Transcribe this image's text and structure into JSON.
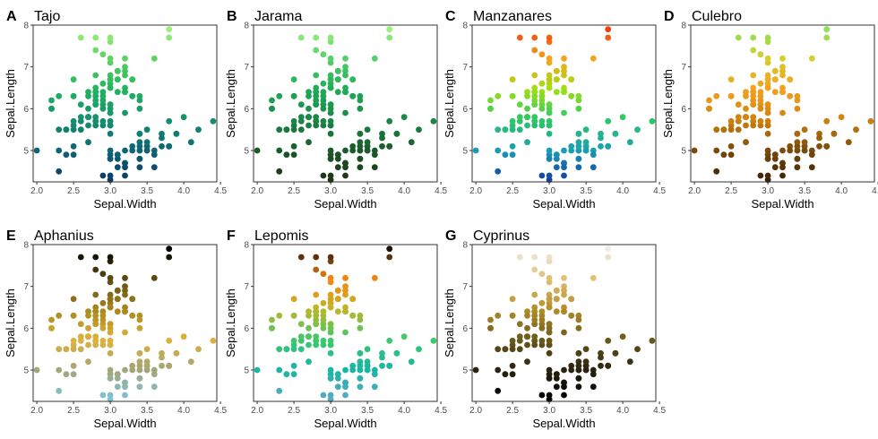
{
  "chart_data": {
    "type": "scatter",
    "xlabel": "Sepal.Width",
    "ylabel": "Sepal.Length",
    "xlim": [
      1.95,
      4.45
    ],
    "ylim": [
      4.25,
      8.0
    ],
    "xticks": [
      2.0,
      2.5,
      3.0,
      3.5,
      4.0,
      4.5
    ],
    "xtick_labels": [
      "2.0",
      "2.5",
      "3.0",
      "3.5",
      "4.0",
      "4.5"
    ],
    "yticks": [
      5,
      6,
      7,
      8
    ],
    "ytick_labels": [
      "5",
      "6",
      "7",
      "8"
    ],
    "color_variable": "Sepal.Length",
    "points": [
      [
        3.5,
        5.1
      ],
      [
        3.0,
        4.9
      ],
      [
        3.2,
        4.7
      ],
      [
        3.1,
        4.6
      ],
      [
        3.6,
        5.0
      ],
      [
        3.9,
        5.4
      ],
      [
        3.4,
        4.6
      ],
      [
        3.4,
        5.0
      ],
      [
        2.9,
        4.4
      ],
      [
        3.1,
        4.9
      ],
      [
        3.7,
        5.4
      ],
      [
        3.4,
        4.8
      ],
      [
        3.0,
        4.8
      ],
      [
        3.0,
        4.3
      ],
      [
        4.0,
        5.8
      ],
      [
        4.4,
        5.7
      ],
      [
        3.9,
        5.4
      ],
      [
        3.5,
        5.1
      ],
      [
        3.8,
        5.7
      ],
      [
        3.8,
        5.1
      ],
      [
        3.4,
        5.4
      ],
      [
        3.7,
        5.1
      ],
      [
        3.6,
        4.6
      ],
      [
        3.3,
        5.1
      ],
      [
        3.4,
        4.8
      ],
      [
        3.0,
        5.0
      ],
      [
        3.4,
        5.0
      ],
      [
        3.5,
        5.2
      ],
      [
        3.4,
        5.2
      ],
      [
        3.2,
        4.7
      ],
      [
        3.1,
        4.8
      ],
      [
        3.4,
        5.4
      ],
      [
        4.1,
        5.2
      ],
      [
        4.2,
        5.5
      ],
      [
        3.1,
        4.9
      ],
      [
        3.2,
        5.0
      ],
      [
        3.5,
        5.5
      ],
      [
        3.6,
        4.9
      ],
      [
        3.0,
        4.4
      ],
      [
        3.4,
        5.1
      ],
      [
        3.5,
        5.0
      ],
      [
        2.3,
        4.5
      ],
      [
        3.2,
        4.4
      ],
      [
        3.5,
        5.0
      ],
      [
        3.8,
        5.1
      ],
      [
        3.0,
        4.8
      ],
      [
        3.8,
        5.1
      ],
      [
        3.2,
        4.6
      ],
      [
        3.7,
        5.3
      ],
      [
        3.3,
        5.0
      ],
      [
        3.2,
        7.0
      ],
      [
        3.2,
        6.4
      ],
      [
        3.1,
        6.9
      ],
      [
        2.3,
        5.5
      ],
      [
        2.8,
        6.5
      ],
      [
        2.8,
        5.7
      ],
      [
        3.3,
        6.3
      ],
      [
        2.4,
        4.9
      ],
      [
        2.9,
        6.6
      ],
      [
        2.7,
        5.2
      ],
      [
        2.0,
        5.0
      ],
      [
        3.0,
        5.9
      ],
      [
        2.2,
        6.0
      ],
      [
        2.9,
        6.1
      ],
      [
        2.9,
        5.6
      ],
      [
        3.1,
        6.7
      ],
      [
        3.0,
        5.6
      ],
      [
        2.7,
        5.8
      ],
      [
        2.2,
        6.2
      ],
      [
        2.5,
        5.6
      ],
      [
        3.2,
        5.9
      ],
      [
        2.8,
        6.1
      ],
      [
        2.5,
        6.3
      ],
      [
        2.8,
        6.1
      ],
      [
        2.9,
        6.4
      ],
      [
        3.0,
        6.6
      ],
      [
        2.8,
        6.8
      ],
      [
        3.0,
        6.7
      ],
      [
        2.9,
        6.0
      ],
      [
        2.6,
        5.7
      ],
      [
        2.4,
        5.5
      ],
      [
        2.4,
        5.5
      ],
      [
        2.7,
        5.8
      ],
      [
        2.7,
        6.0
      ],
      [
        3.0,
        5.4
      ],
      [
        3.4,
        6.0
      ],
      [
        3.1,
        6.7
      ],
      [
        2.3,
        6.3
      ],
      [
        3.0,
        5.6
      ],
      [
        2.5,
        5.5
      ],
      [
        2.6,
        5.5
      ],
      [
        3.0,
        6.1
      ],
      [
        2.6,
        5.8
      ],
      [
        2.3,
        5.0
      ],
      [
        2.7,
        5.6
      ],
      [
        3.0,
        5.7
      ],
      [
        2.9,
        5.7
      ],
      [
        2.9,
        6.2
      ],
      [
        2.5,
        5.1
      ],
      [
        2.8,
        5.7
      ],
      [
        3.3,
        6.3
      ],
      [
        2.7,
        5.8
      ],
      [
        3.0,
        7.1
      ],
      [
        2.9,
        6.3
      ],
      [
        3.0,
        6.5
      ],
      [
        3.0,
        7.6
      ],
      [
        2.5,
        4.9
      ],
      [
        2.9,
        7.3
      ],
      [
        2.5,
        6.7
      ],
      [
        3.6,
        7.2
      ],
      [
        3.2,
        6.5
      ],
      [
        2.7,
        6.4
      ],
      [
        3.0,
        6.8
      ],
      [
        2.5,
        5.7
      ],
      [
        2.8,
        5.8
      ],
      [
        3.2,
        6.4
      ],
      [
        3.0,
        6.5
      ],
      [
        3.8,
        7.7
      ],
      [
        2.6,
        7.7
      ],
      [
        2.2,
        6.0
      ],
      [
        3.2,
        6.9
      ],
      [
        2.8,
        5.6
      ],
      [
        2.8,
        7.7
      ],
      [
        2.7,
        6.3
      ],
      [
        3.3,
        6.7
      ],
      [
        3.2,
        7.2
      ],
      [
        2.8,
        6.2
      ],
      [
        3.0,
        6.1
      ],
      [
        2.8,
        6.4
      ],
      [
        3.0,
        7.2
      ],
      [
        2.8,
        7.4
      ],
      [
        3.8,
        7.9
      ],
      [
        2.8,
        6.4
      ],
      [
        2.8,
        6.3
      ],
      [
        2.6,
        6.1
      ],
      [
        3.0,
        7.7
      ],
      [
        3.4,
        6.3
      ],
      [
        3.1,
        6.4
      ],
      [
        3.0,
        6.0
      ],
      [
        3.1,
        6.9
      ],
      [
        3.1,
        6.7
      ],
      [
        3.1,
        6.9
      ],
      [
        2.7,
        5.8
      ],
      [
        3.2,
        6.8
      ],
      [
        3.3,
        6.7
      ],
      [
        3.0,
        6.7
      ],
      [
        2.5,
        6.3
      ],
      [
        3.0,
        6.5
      ],
      [
        3.4,
        6.2
      ],
      [
        3.0,
        5.9
      ]
    ],
    "panels": [
      {
        "letter": "A",
        "title": "Tajo",
        "palette": [
          "#0d3b66",
          "#0f6674",
          "#13906e",
          "#22b45e",
          "#5fd063",
          "#9ef07a"
        ]
      },
      {
        "letter": "B",
        "title": "Jarama",
        "palette": [
          "#1d3314",
          "#1b5b2b",
          "#1a8747",
          "#1fab58",
          "#55cf6a",
          "#9af07c"
        ]
      },
      {
        "letter": "C",
        "title": "Manzanares",
        "palette": [
          "#1440a0",
          "#1aa0b4",
          "#2cc766",
          "#a0e013",
          "#f5a51d",
          "#f2400f"
        ]
      },
      {
        "letter": "D",
        "title": "Culebro",
        "palette": [
          "#3a2306",
          "#7b4b0a",
          "#d0820d",
          "#f2a122",
          "#d9cc2c",
          "#8ce05a"
        ]
      },
      {
        "letter": "E",
        "title": "Aphanius",
        "palette": [
          "#7bc4d9",
          "#a5a575",
          "#e0b23a",
          "#a6861d",
          "#5c4a12",
          "#000000"
        ]
      },
      {
        "letter": "F",
        "title": "Lepomis",
        "palette": [
          "#5aaac4",
          "#16b6a4",
          "#3ec96a",
          "#c0b626",
          "#f7860f",
          "#1c120a"
        ]
      },
      {
        "letter": "G",
        "title": "Cyprinus",
        "palette": [
          "#000000",
          "#2a2410",
          "#6b5a1a",
          "#b48f2a",
          "#e0c074",
          "#f0ede8"
        ]
      }
    ]
  }
}
